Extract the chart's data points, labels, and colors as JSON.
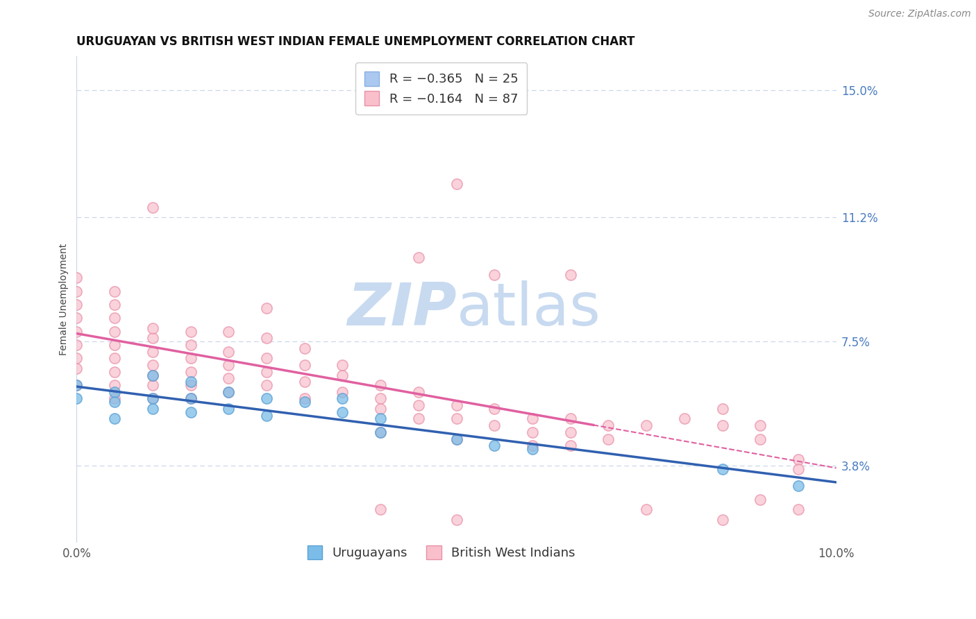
{
  "title": "URUGUAYAN VS BRITISH WEST INDIAN FEMALE UNEMPLOYMENT CORRELATION CHART",
  "source": "Source: ZipAtlas.com",
  "ylabel": "Female Unemployment",
  "xlim": [
    0.0,
    0.1
  ],
  "ylim": [
    0.015,
    0.16
  ],
  "yticks": [
    0.038,
    0.075,
    0.112,
    0.15
  ],
  "ytick_labels": [
    "3.8%",
    "7.5%",
    "11.2%",
    "15.0%"
  ],
  "xticks": [
    0.0,
    0.1
  ],
  "xtick_labels": [
    "0.0%",
    "10.0%"
  ],
  "uruguayan_color": "#7bbde8",
  "uruguayan_edge": "#5a9fd4",
  "bwi_color": "#f9c0cc",
  "bwi_edge": "#e890a8",
  "trend_uruguayan_color": "#3060b0",
  "trend_bwi_color": "#e060a0",
  "grid_color": "#c8d4e8",
  "watermark_color": "#c8daf0",
  "background_color": "#ffffff",
  "uruguayan_scatter": [
    [
      0.0,
      0.062
    ],
    [
      0.0,
      0.058
    ],
    [
      0.005,
      0.06
    ],
    [
      0.005,
      0.057
    ],
    [
      0.005,
      0.052
    ],
    [
      0.01,
      0.065
    ],
    [
      0.01,
      0.058
    ],
    [
      0.01,
      0.055
    ],
    [
      0.015,
      0.063
    ],
    [
      0.015,
      0.058
    ],
    [
      0.015,
      0.054
    ],
    [
      0.02,
      0.06
    ],
    [
      0.02,
      0.055
    ],
    [
      0.025,
      0.058
    ],
    [
      0.025,
      0.053
    ],
    [
      0.03,
      0.057
    ],
    [
      0.035,
      0.058
    ],
    [
      0.035,
      0.054
    ],
    [
      0.04,
      0.052
    ],
    [
      0.04,
      0.048
    ],
    [
      0.05,
      0.046
    ],
    [
      0.055,
      0.044
    ],
    [
      0.06,
      0.043
    ],
    [
      0.085,
      0.037
    ],
    [
      0.095,
      0.032
    ]
  ],
  "bwi_scatter": [
    [
      0.0,
      0.062
    ],
    [
      0.0,
      0.067
    ],
    [
      0.0,
      0.07
    ],
    [
      0.0,
      0.074
    ],
    [
      0.0,
      0.078
    ],
    [
      0.0,
      0.082
    ],
    [
      0.0,
      0.086
    ],
    [
      0.0,
      0.09
    ],
    [
      0.0,
      0.094
    ],
    [
      0.005,
      0.058
    ],
    [
      0.005,
      0.062
    ],
    [
      0.005,
      0.066
    ],
    [
      0.005,
      0.07
    ],
    [
      0.005,
      0.074
    ],
    [
      0.005,
      0.078
    ],
    [
      0.005,
      0.082
    ],
    [
      0.005,
      0.086
    ],
    [
      0.005,
      0.09
    ],
    [
      0.01,
      0.058
    ],
    [
      0.01,
      0.062
    ],
    [
      0.01,
      0.065
    ],
    [
      0.01,
      0.068
    ],
    [
      0.01,
      0.072
    ],
    [
      0.01,
      0.076
    ],
    [
      0.01,
      0.079
    ],
    [
      0.015,
      0.058
    ],
    [
      0.015,
      0.062
    ],
    [
      0.015,
      0.066
    ],
    [
      0.015,
      0.07
    ],
    [
      0.015,
      0.074
    ],
    [
      0.015,
      0.078
    ],
    [
      0.02,
      0.06
    ],
    [
      0.02,
      0.064
    ],
    [
      0.02,
      0.068
    ],
    [
      0.02,
      0.072
    ],
    [
      0.02,
      0.078
    ],
    [
      0.025,
      0.062
    ],
    [
      0.025,
      0.066
    ],
    [
      0.025,
      0.07
    ],
    [
      0.025,
      0.076
    ],
    [
      0.025,
      0.085
    ],
    [
      0.03,
      0.058
    ],
    [
      0.03,
      0.063
    ],
    [
      0.03,
      0.068
    ],
    [
      0.03,
      0.073
    ],
    [
      0.035,
      0.06
    ],
    [
      0.035,
      0.065
    ],
    [
      0.035,
      0.068
    ],
    [
      0.04,
      0.058
    ],
    [
      0.04,
      0.062
    ],
    [
      0.04,
      0.055
    ],
    [
      0.04,
      0.048
    ],
    [
      0.045,
      0.06
    ],
    [
      0.045,
      0.056
    ],
    [
      0.045,
      0.052
    ],
    [
      0.05,
      0.052
    ],
    [
      0.05,
      0.056
    ],
    [
      0.05,
      0.046
    ],
    [
      0.055,
      0.055
    ],
    [
      0.055,
      0.05
    ],
    [
      0.06,
      0.052
    ],
    [
      0.06,
      0.048
    ],
    [
      0.06,
      0.044
    ],
    [
      0.065,
      0.052
    ],
    [
      0.065,
      0.048
    ],
    [
      0.065,
      0.044
    ],
    [
      0.065,
      0.095
    ],
    [
      0.07,
      0.05
    ],
    [
      0.07,
      0.046
    ],
    [
      0.075,
      0.05
    ],
    [
      0.08,
      0.052
    ],
    [
      0.085,
      0.055
    ],
    [
      0.085,
      0.05
    ],
    [
      0.09,
      0.05
    ],
    [
      0.09,
      0.046
    ],
    [
      0.095,
      0.04
    ],
    [
      0.095,
      0.037
    ],
    [
      0.05,
      0.122
    ],
    [
      0.01,
      0.115
    ],
    [
      0.045,
      0.1
    ],
    [
      0.055,
      0.095
    ],
    [
      0.04,
      0.025
    ],
    [
      0.05,
      0.022
    ],
    [
      0.075,
      0.025
    ],
    [
      0.085,
      0.022
    ],
    [
      0.09,
      0.028
    ],
    [
      0.095,
      0.025
    ]
  ],
  "title_fontsize": 12,
  "axis_label_fontsize": 10,
  "tick_fontsize": 12,
  "legend_fontsize": 13,
  "source_fontsize": 10
}
